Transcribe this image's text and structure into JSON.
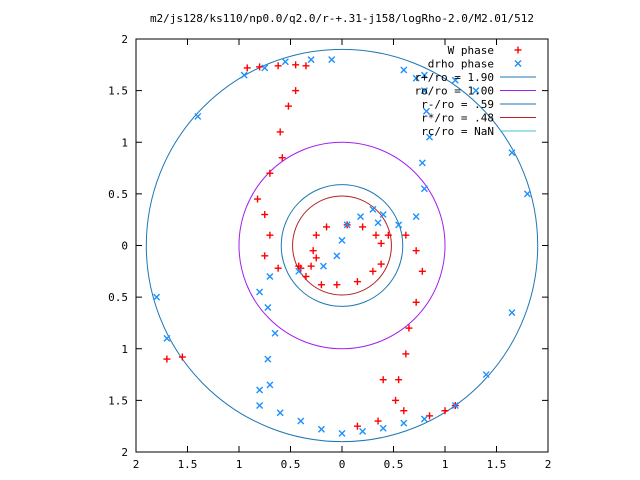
{
  "chart_data": {
    "type": "scatter",
    "title": "m2/js128/ks110/np0.0/q2.0/r-+.31-j158/logRho-2.0/M2.01/512",
    "xlabel": "",
    "ylabel": "",
    "xlim": [
      -2,
      2
    ],
    "ylim": [
      -2,
      2
    ],
    "x_ticks": [
      -2,
      -1.5,
      -1,
      -0.5,
      0,
      0.5,
      1,
      1.5,
      2
    ],
    "x_tick_labels": [
      "2",
      "1.5",
      "1",
      "0.5",
      "0",
      "0.5",
      "1",
      "1.5",
      "2"
    ],
    "y_ticks": [
      2,
      1.5,
      1,
      0.5,
      0,
      -0.5,
      -1,
      -1.5,
      -2
    ],
    "y_tick_labels": [
      "2",
      "1.5",
      "1",
      "0.5",
      "0",
      "0.5",
      "1",
      "1.5",
      "2"
    ],
    "grid": false,
    "legend_position": "top-right",
    "colors": {
      "w_phase": "#ff0000",
      "drho_phase": "#1e90ff",
      "r_plus": "#1f77b4",
      "ro": "#a020f0",
      "r_minus": "#1f77b4",
      "r_star": "#b22222",
      "rc": "#40c0d0"
    },
    "series": [
      {
        "name": "W phase",
        "marker": "plus",
        "points": [
          [
            -0.92,
            1.72
          ],
          [
            -0.8,
            1.73
          ],
          [
            -0.62,
            1.74
          ],
          [
            -0.45,
            1.75
          ],
          [
            -0.35,
            1.74
          ],
          [
            -0.45,
            1.5
          ],
          [
            -0.52,
            1.35
          ],
          [
            -0.6,
            1.1
          ],
          [
            -0.58,
            0.85
          ],
          [
            -0.7,
            0.7
          ],
          [
            -0.82,
            0.45
          ],
          [
            -0.75,
            0.3
          ],
          [
            -0.7,
            0.1
          ],
          [
            -0.75,
            -0.1
          ],
          [
            -0.62,
            -0.22
          ],
          [
            -0.4,
            -0.22
          ],
          [
            -0.3,
            -0.2
          ],
          [
            -0.25,
            -0.12
          ],
          [
            -0.28,
            -0.05
          ],
          [
            -0.25,
            0.1
          ],
          [
            -0.15,
            0.18
          ],
          [
            0.05,
            0.2
          ],
          [
            0.2,
            0.18
          ],
          [
            0.33,
            0.1
          ],
          [
            0.38,
            0.02
          ],
          [
            0.38,
            -0.18
          ],
          [
            0.3,
            -0.25
          ],
          [
            0.15,
            -0.35
          ],
          [
            -0.05,
            -0.38
          ],
          [
            -0.2,
            -0.38
          ],
          [
            -0.35,
            -0.3
          ],
          [
            -0.42,
            -0.2
          ],
          [
            0.45,
            0.1
          ],
          [
            0.62,
            0.1
          ],
          [
            0.72,
            -0.05
          ],
          [
            0.78,
            -0.25
          ],
          [
            0.72,
            -0.55
          ],
          [
            0.65,
            -0.8
          ],
          [
            0.62,
            -1.05
          ],
          [
            0.55,
            -1.3
          ],
          [
            0.4,
            -1.3
          ],
          [
            0.52,
            -1.5
          ],
          [
            0.6,
            -1.6
          ],
          [
            0.35,
            -1.7
          ],
          [
            0.15,
            -1.75
          ],
          [
            0.85,
            -1.65
          ],
          [
            1.0,
            -1.6
          ],
          [
            1.1,
            -1.55
          ],
          [
            -1.55,
            -1.08
          ],
          [
            -1.7,
            -1.1
          ]
        ]
      },
      {
        "name": "drho phase",
        "marker": "cross",
        "points": [
          [
            -0.8,
            -1.4
          ],
          [
            -0.7,
            -1.35
          ],
          [
            -0.72,
            -1.1
          ],
          [
            -0.65,
            -0.85
          ],
          [
            -0.72,
            -0.6
          ],
          [
            -0.8,
            -0.45
          ],
          [
            -0.7,
            -0.3
          ],
          [
            -0.42,
            -0.25
          ],
          [
            -0.18,
            -0.2
          ],
          [
            -0.05,
            -0.1
          ],
          [
            0.0,
            0.05
          ],
          [
            0.05,
            0.2
          ],
          [
            0.18,
            0.28
          ],
          [
            0.3,
            0.35
          ],
          [
            0.4,
            0.3
          ],
          [
            0.35,
            0.22
          ],
          [
            0.55,
            0.2
          ],
          [
            0.72,
            0.28
          ],
          [
            0.8,
            0.55
          ],
          [
            0.78,
            0.8
          ],
          [
            0.85,
            1.05
          ],
          [
            0.82,
            1.3
          ],
          [
            0.8,
            1.5
          ],
          [
            0.72,
            1.62
          ],
          [
            -0.8,
            -1.55
          ],
          [
            -0.6,
            -1.62
          ],
          [
            -0.4,
            -1.7
          ],
          [
            -0.2,
            -1.78
          ],
          [
            0.0,
            -1.82
          ],
          [
            0.2,
            -1.8
          ],
          [
            0.4,
            -1.77
          ],
          [
            0.6,
            -1.72
          ],
          [
            0.8,
            -1.68
          ],
          [
            1.1,
            -1.55
          ],
          [
            1.4,
            -1.25
          ],
          [
            1.65,
            -0.65
          ],
          [
            1.8,
            0.5
          ],
          [
            1.65,
            0.9
          ],
          [
            1.3,
            1.5
          ],
          [
            1.1,
            1.6
          ],
          [
            0.8,
            1.65
          ],
          [
            0.6,
            1.7
          ],
          [
            -0.1,
            1.8
          ],
          [
            -0.3,
            1.8
          ],
          [
            -0.55,
            1.78
          ],
          [
            -0.75,
            1.72
          ],
          [
            -0.95,
            1.65
          ],
          [
            -1.4,
            1.25
          ],
          [
            -1.8,
            -0.5
          ],
          [
            -1.7,
            -0.9
          ]
        ]
      }
    ],
    "circles": [
      {
        "name": "r+/ro = 1.90",
        "radius": 1.9
      },
      {
        "name": "ro/ro = 1.00",
        "radius": 1.0
      },
      {
        "name": "r-/ro = .59",
        "radius": 0.59
      },
      {
        "name": "r*/ro = .48",
        "radius": 0.48
      },
      {
        "name": "rc/ro = NaN",
        "radius": null
      }
    ]
  }
}
